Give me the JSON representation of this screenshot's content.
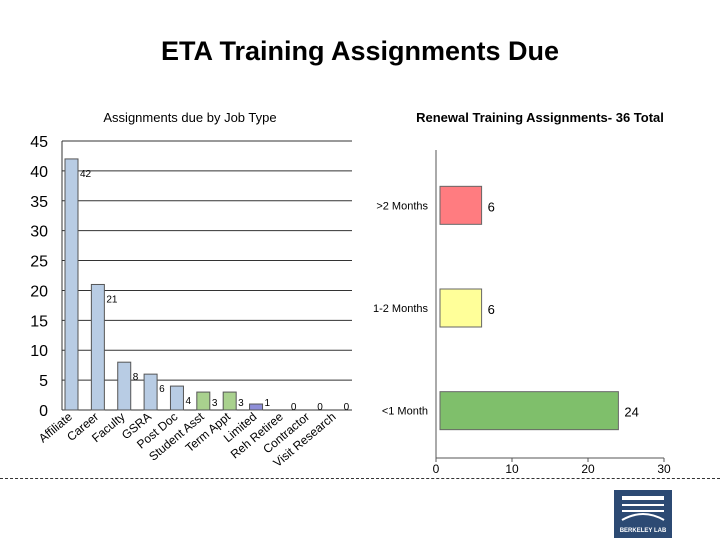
{
  "slide": {
    "title": "ETA Training Assignments Due"
  },
  "logo": {
    "text": "BERKELEY LAB"
  },
  "chart_data": [
    {
      "type": "bar",
      "title": "Assignments due by Job Type",
      "categories": [
        "Affiliate",
        "Career",
        "Faculty",
        "GSRA",
        "Post Doc",
        "Student Asst",
        "Term Appt",
        "Limited",
        "Reh Retiree",
        "Contractor",
        "Visit Research"
      ],
      "values": [
        42,
        21,
        8,
        6,
        4,
        3,
        3,
        1,
        0,
        0,
        0
      ],
      "bar_colors": [
        "#b8cce4",
        "#b8cce4",
        "#b8cce4",
        "#b8cce4",
        "#b8cce4",
        "#a9d18e",
        "#a9d18e",
        "#8e8ed8",
        "#b8cce4",
        "#b8cce4",
        "#b8cce4"
      ],
      "ylim": [
        0,
        45
      ],
      "yticks": [
        0,
        5,
        10,
        15,
        20,
        25,
        30,
        35,
        40,
        45
      ],
      "grid": true
    },
    {
      "type": "bar",
      "orientation": "horizontal",
      "title": "Renewal Training Assignments- 36 Total",
      "categories": [
        ">2 Months",
        "1-2 Months",
        "<1 Month"
      ],
      "values": [
        6,
        6,
        24
      ],
      "bar_colors": [
        "#ff7c80",
        "#ffff99",
        "#7fbf6b"
      ],
      "xlim": [
        0,
        30
      ],
      "xticks": [
        0,
        10,
        20,
        30
      ]
    }
  ]
}
